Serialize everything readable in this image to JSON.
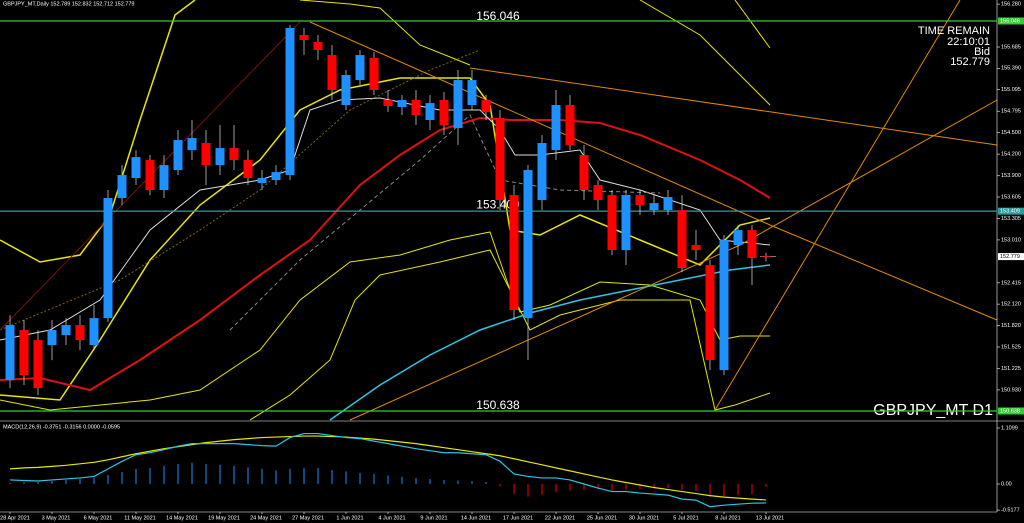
{
  "chart_data": {
    "type": "candlestick",
    "title": "GBPJPY_MT,Daily  152.789 152.832 152.712 152.779",
    "info": [
      "TIME REMAIN",
      "22:10:01",
      "Bid",
      "152.779"
    ],
    "symbol_label": "GBPJPY_MT D1",
    "macd_label": "MACD(12,26,9) -0.3751 -0.3156 0.0000 -0.0595",
    "categories": [
      "28 Apr 2021",
      null,
      null,
      "3 May 2021",
      null,
      null,
      "6 May 2021",
      null,
      null,
      "11 May 2021",
      null,
      null,
      "14 May 2021",
      null,
      null,
      "19 May 2021",
      null,
      null,
      "24 May 2021",
      null,
      null,
      "27 May 2021",
      null,
      null,
      "1 Jun 2021",
      null,
      null,
      "4 Jun 2021",
      null,
      null,
      "9 Jun 2021",
      null,
      null,
      "14 Jun 2021",
      null,
      null,
      "17 Jun 2021",
      null,
      null,
      "22 Jun 2021",
      null,
      null,
      "25 Jun 2021",
      null,
      null,
      "30 Jun 2021",
      null,
      null,
      "5 Jul 2021",
      null,
      null,
      "8 Jul 2021",
      null,
      null,
      "13 Jul 2021"
    ],
    "open": [
      151.066,
      151.76,
      151.621,
      151.552,
      151.691,
      151.829,
      151.552,
      151.926,
      153.591,
      153.868,
      154.118,
      153.702,
      153.979,
      154.256,
      154.354,
      154.048,
      154.284,
      154.118,
      153.799,
      153.84,
      153.91,
      155.852,
      155.754,
      155.574,
      154.881,
      155.227,
      155.533,
      154.95,
      154.853,
      154.95,
      154.673,
      154.95,
      154.562,
      154.881,
      154.95,
      154.7,
      153.632,
      151.926,
      153.563,
      154.256,
      154.881,
      154.187,
      153.771,
      153.632,
      152.869,
      153.632,
      153.424,
      153.424,
      153.424,
      152.939,
      152.661,
      151.205,
      152.939,
      153.147,
      152.789
    ],
    "high": [
      151.968,
      151.899,
      151.76,
      151.899,
      151.926,
      151.968,
      152.107,
      153.702,
      154.048,
      154.256,
      154.187,
      154.187,
      154.534,
      154.673,
      154.534,
      154.603,
      154.603,
      154.256,
      153.979,
      154.048,
      155.99,
      155.949,
      155.852,
      155.713,
      155.366,
      155.643,
      155.616,
      155.089,
      155.019,
      155.089,
      155.019,
      155.061,
      155.366,
      155.366,
      155.019,
      154.811,
      153.771,
      154.048,
      154.465,
      155.089,
      155.019,
      154.326,
      153.84,
      153.702,
      153.702,
      153.702,
      153.632,
      153.702,
      153.632,
      153.147,
      152.731,
      153.078,
      153.216,
      153.216,
      152.832
    ],
    "low": [
      150.955,
      150.997,
      150.858,
      151.344,
      151.552,
      151.482,
      151.482,
      151.871,
      153.494,
      153.771,
      153.632,
      153.591,
      153.91,
      154.118,
      153.771,
      153.91,
      153.979,
      153.771,
      153.702,
      153.771,
      153.84,
      155.574,
      155.505,
      154.95,
      154.811,
      155.158,
      155.019,
      154.784,
      154.742,
      154.603,
      154.534,
      154.465,
      154.326,
      154.811,
      154.673,
      153.424,
      151.899,
      151.344,
      153.424,
      154.118,
      154.256,
      153.563,
      153.424,
      152.8,
      152.661,
      153.355,
      153.355,
      153.355,
      152.564,
      152.731,
      151.205,
      151.136,
      152.8,
      152.384,
      152.712
    ],
    "close": [
      151.829,
      151.136,
      150.955,
      151.76,
      151.829,
      151.621,
      151.926,
      153.591,
      153.91,
      154.159,
      153.702,
      154.048,
      154.395,
      154.423,
      154.048,
      154.284,
      154.118,
      153.868,
      153.868,
      153.951,
      155.949,
      155.782,
      155.643,
      155.089,
      155.297,
      155.574,
      155.089,
      154.867,
      154.95,
      154.742,
      154.908,
      154.603,
      155.227,
      155.227,
      154.784,
      153.563,
      152.037,
      153.979,
      154.354,
      154.881,
      154.326,
      153.702,
      153.563,
      152.869,
      153.632,
      153.494,
      153.521,
      153.605,
      152.62,
      152.869,
      151.344,
      153.008,
      153.147,
      152.759,
      152.779
    ],
    "up_color": "#1e90ff",
    "down_color": "#ff0000",
    "ylim": [
      150.513,
      156.337
    ],
    "yticks": [
      {
        "value": 156.28,
        "label": "156.280"
      },
      {
        "value": 155.685,
        "label": "155.685"
      },
      {
        "value": 155.39,
        "label": "155.390"
      },
      {
        "value": 155.095,
        "label": "155.095"
      },
      {
        "value": 154.795,
        "label": "154.795"
      },
      {
        "value": 154.5,
        "label": "154.500"
      },
      {
        "value": 154.2,
        "label": "154.200"
      },
      {
        "value": 153.9,
        "label": "153.900"
      },
      {
        "value": 153.605,
        "label": "153.605"
      },
      {
        "value": 153.305,
        "label": "153.305"
      },
      {
        "value": 153.01,
        "label": "153.010"
      },
      {
        "value": 152.415,
        "label": "152.415"
      },
      {
        "value": 152.12,
        "label": "152.120"
      },
      {
        "value": 151.82,
        "label": "151.820"
      },
      {
        "value": 151.525,
        "label": "151.525"
      },
      {
        "value": 151.225,
        "label": "151.225"
      },
      {
        "value": 150.93,
        "label": "150.930"
      }
    ],
    "levels": [
      {
        "value": 156.046,
        "color": "#33cc33"
      },
      {
        "value": 153.409,
        "color": "#2a9d9d"
      },
      {
        "value": 150.638,
        "color": "#33cc33"
      }
    ],
    "last_price": 152.779,
    "macd": {
      "histogram": [
        0.02,
        0.03,
        0.04,
        0.06,
        0.08,
        0.1,
        0.12,
        0.18,
        0.24,
        0.3,
        0.32,
        0.36,
        0.4,
        0.42,
        0.4,
        0.38,
        0.36,
        0.33,
        0.3,
        0.27,
        0.3,
        0.32,
        0.32,
        0.28,
        0.25,
        0.22,
        0.2,
        0.17,
        0.14,
        0.12,
        0.1,
        0.08,
        0.07,
        0.06,
        0.04,
        -0.05,
        -0.2,
        -0.25,
        -0.22,
        -0.16,
        -0.13,
        -0.12,
        -0.11,
        -0.13,
        -0.12,
        -0.1,
        -0.09,
        -0.08,
        -0.12,
        -0.14,
        -0.25,
        -0.24,
        -0.22,
        -0.2,
        -0.06
      ],
      "signal": [
        0.3,
        0.32,
        0.33,
        0.35,
        0.37,
        0.4,
        0.43,
        0.48,
        0.54,
        0.6,
        0.65,
        0.7,
        0.74,
        0.78,
        0.82,
        0.85,
        0.88,
        0.9,
        0.92,
        0.93,
        0.94,
        0.95,
        0.95,
        0.94,
        0.93,
        0.91,
        0.89,
        0.86,
        0.83,
        0.8,
        0.76,
        0.72,
        0.68,
        0.64,
        0.6,
        0.56,
        0.5,
        0.44,
        0.38,
        0.32,
        0.26,
        0.2,
        0.14,
        0.08,
        0.03,
        -0.02,
        -0.07,
        -0.11,
        -0.15,
        -0.19,
        -0.23,
        -0.26,
        -0.28,
        -0.3,
        -0.3156
      ],
      "main": [
        0.08,
        0.07,
        0.06,
        0.08,
        0.1,
        0.12,
        0.15,
        0.3,
        0.45,
        0.58,
        0.62,
        0.68,
        0.75,
        0.8,
        0.8,
        0.8,
        0.8,
        0.78,
        0.76,
        0.75,
        0.92,
        1.0,
        1.0,
        0.96,
        0.92,
        0.9,
        0.85,
        0.8,
        0.75,
        0.7,
        0.66,
        0.62,
        0.62,
        0.6,
        0.58,
        0.45,
        0.2,
        0.15,
        0.12,
        0.12,
        0.08,
        0.0,
        -0.08,
        -0.15,
        -0.15,
        -0.18,
        -0.2,
        -0.22,
        -0.3,
        -0.32,
        -0.45,
        -0.42,
        -0.4,
        -0.38,
        -0.3751
      ],
      "hist_up_color": "#1e90ff",
      "hist_down_color": "#ff0000",
      "signal_color": "#e6e600",
      "main_color": "#2ec4e6",
      "ylim": [
        -0.555,
        1.209
      ],
      "yticks": [
        {
          "value": 1.1099,
          "label": "1.1099"
        },
        {
          "value": 0,
          "label": "0.00"
        },
        {
          "value": -0.5177,
          "label": "-0.5177"
        }
      ]
    }
  }
}
